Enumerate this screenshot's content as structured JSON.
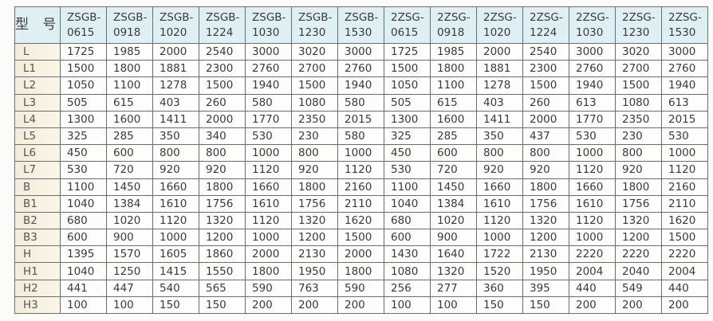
{
  "table": {
    "corner_label": "型 号",
    "columns": [
      [
        "ZSGB-",
        "0615"
      ],
      [
        "ZSGB-",
        "0918"
      ],
      [
        "ZSGB-",
        "1020"
      ],
      [
        "ZSGB-",
        "1224"
      ],
      [
        "ZSGB-",
        "1030"
      ],
      [
        "ZSGB-",
        "1230"
      ],
      [
        "ZSGB-",
        "1530"
      ],
      [
        "2ZSG-",
        "0615"
      ],
      [
        "2ZSG-",
        "0918"
      ],
      [
        "2ZSG-",
        "1020"
      ],
      [
        "2ZSG-",
        "1224"
      ],
      [
        "2ZSG-",
        "1030"
      ],
      [
        "2ZSG-",
        "1230"
      ],
      [
        "2ZSG-",
        "1530"
      ]
    ],
    "rows": [
      {
        "label": "L",
        "values": [
          "1725",
          "1985",
          "2000",
          "2540",
          "3000",
          "3020",
          "3000",
          "1725",
          "1985",
          "2000",
          "2540",
          "3000",
          "3020",
          "3000"
        ]
      },
      {
        "label": "L1",
        "values": [
          "1500",
          "1800",
          "1881",
          "2300",
          "2760",
          "2700",
          "2760",
          "1500",
          "1800",
          "1881",
          "2300",
          "2760",
          "2700",
          "2760"
        ]
      },
      {
        "label": "L2",
        "values": [
          "1050",
          "1100",
          "1278",
          "1500",
          "1940",
          "1500",
          "1940",
          "1050",
          "1100",
          "1278",
          "1500",
          "1940",
          "1500",
          "1940"
        ]
      },
      {
        "label": "L3",
        "values": [
          "505",
          "615",
          "403",
          "260",
          "580",
          "1080",
          "580",
          "505",
          "615",
          "403",
          "260",
          "613",
          "1080",
          "613"
        ]
      },
      {
        "label": "L4",
        "values": [
          "1300",
          "1600",
          "1411",
          "2000",
          "1770",
          "2350",
          "2015",
          "1300",
          "1600",
          "1411",
          "2000",
          "1770",
          "2350",
          "2015"
        ]
      },
      {
        "label": "L5",
        "values": [
          "325",
          "285",
          "350",
          "340",
          "530",
          "230",
          "580",
          "325",
          "285",
          "350",
          "437",
          "530",
          "230",
          "530"
        ]
      },
      {
        "label": "L6",
        "values": [
          "450",
          "600",
          "800",
          "800",
          "1000",
          "800",
          "1000",
          "450",
          "600",
          "800",
          "800",
          "1000",
          "800",
          "1000"
        ]
      },
      {
        "label": "L7",
        "values": [
          "530",
          "720",
          "920",
          "920",
          "1120",
          "920",
          "1120",
          "530",
          "720",
          "920",
          "920",
          "1120",
          "920",
          "1120"
        ]
      },
      {
        "label": "B",
        "values": [
          "1100",
          "1450",
          "1660",
          "1800",
          "1660",
          "1800",
          "2160",
          "1100",
          "1450",
          "1660",
          "1800",
          "1660",
          "1800",
          "2160"
        ]
      },
      {
        "label": "B1",
        "values": [
          "1040",
          "1384",
          "1610",
          "1756",
          "1610",
          "1756",
          "2110",
          "1040",
          "1384",
          "1610",
          "1756",
          "1610",
          "1756",
          "2110"
        ]
      },
      {
        "label": "B2",
        "values": [
          "680",
          "1020",
          "1120",
          "1320",
          "1120",
          "1320",
          "1620",
          "680",
          "1020",
          "1120",
          "1320",
          "1120",
          "1320",
          "1620"
        ]
      },
      {
        "label": "B3",
        "values": [
          "600",
          "900",
          "1000",
          "1200",
          "1000",
          "1200",
          "1500",
          "600",
          "900",
          "1000",
          "1200",
          "1000",
          "1200",
          "1500"
        ]
      },
      {
        "label": "H",
        "values": [
          "1395",
          "1570",
          "1605",
          "1860",
          "2000",
          "2130",
          "2000",
          "1430",
          "1640",
          "1722",
          "2130",
          "2220",
          "2220",
          "2220"
        ]
      },
      {
        "label": "H1",
        "values": [
          "1040",
          "1250",
          "1415",
          "1550",
          "1800",
          "1950",
          "1800",
          "1080",
          "1320",
          "1520",
          "1950",
          "2004",
          "2040",
          "2004"
        ]
      },
      {
        "label": "H2",
        "values": [
          "441",
          "447",
          "540",
          "565",
          "590",
          "763",
          "590",
          "256",
          "277",
          "360",
          "395",
          "440",
          "549",
          "440"
        ]
      },
      {
        "label": "H3",
        "values": [
          "100",
          "100",
          "150",
          "150",
          "200",
          "200",
          "200",
          "100",
          "100",
          "150",
          "150",
          "200",
          "200",
          "200"
        ]
      }
    ]
  }
}
